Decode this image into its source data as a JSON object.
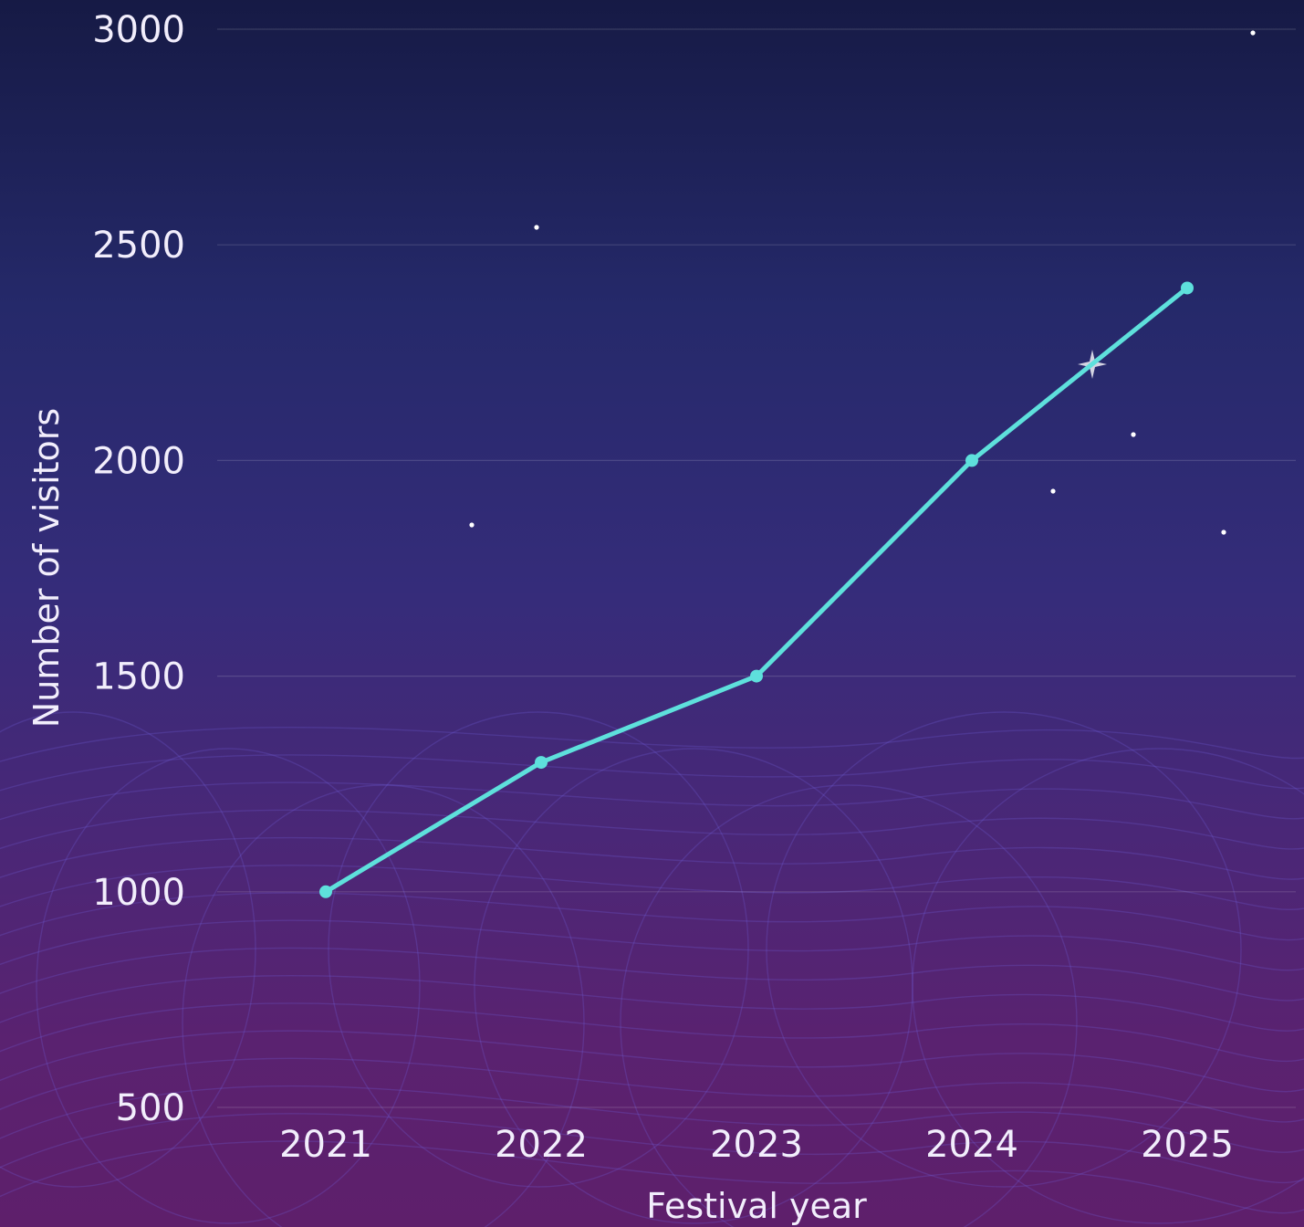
{
  "chart_data": {
    "type": "line",
    "title": "",
    "xlabel": "Festival year",
    "ylabel": "Number of visitors",
    "categories": [
      "2021",
      "2022",
      "2023",
      "2024",
      "2025"
    ],
    "series": [
      {
        "values": [
          1000,
          1300,
          1500,
          2000,
          2400
        ]
      }
    ],
    "ylim": [
      500,
      3000
    ],
    "yticks": [
      500,
      1000,
      1500,
      2000,
      2500,
      3000
    ],
    "grid": true,
    "legend": "none",
    "colors": {
      "line": "#5ee0dc",
      "text": "#f2eefc"
    }
  }
}
